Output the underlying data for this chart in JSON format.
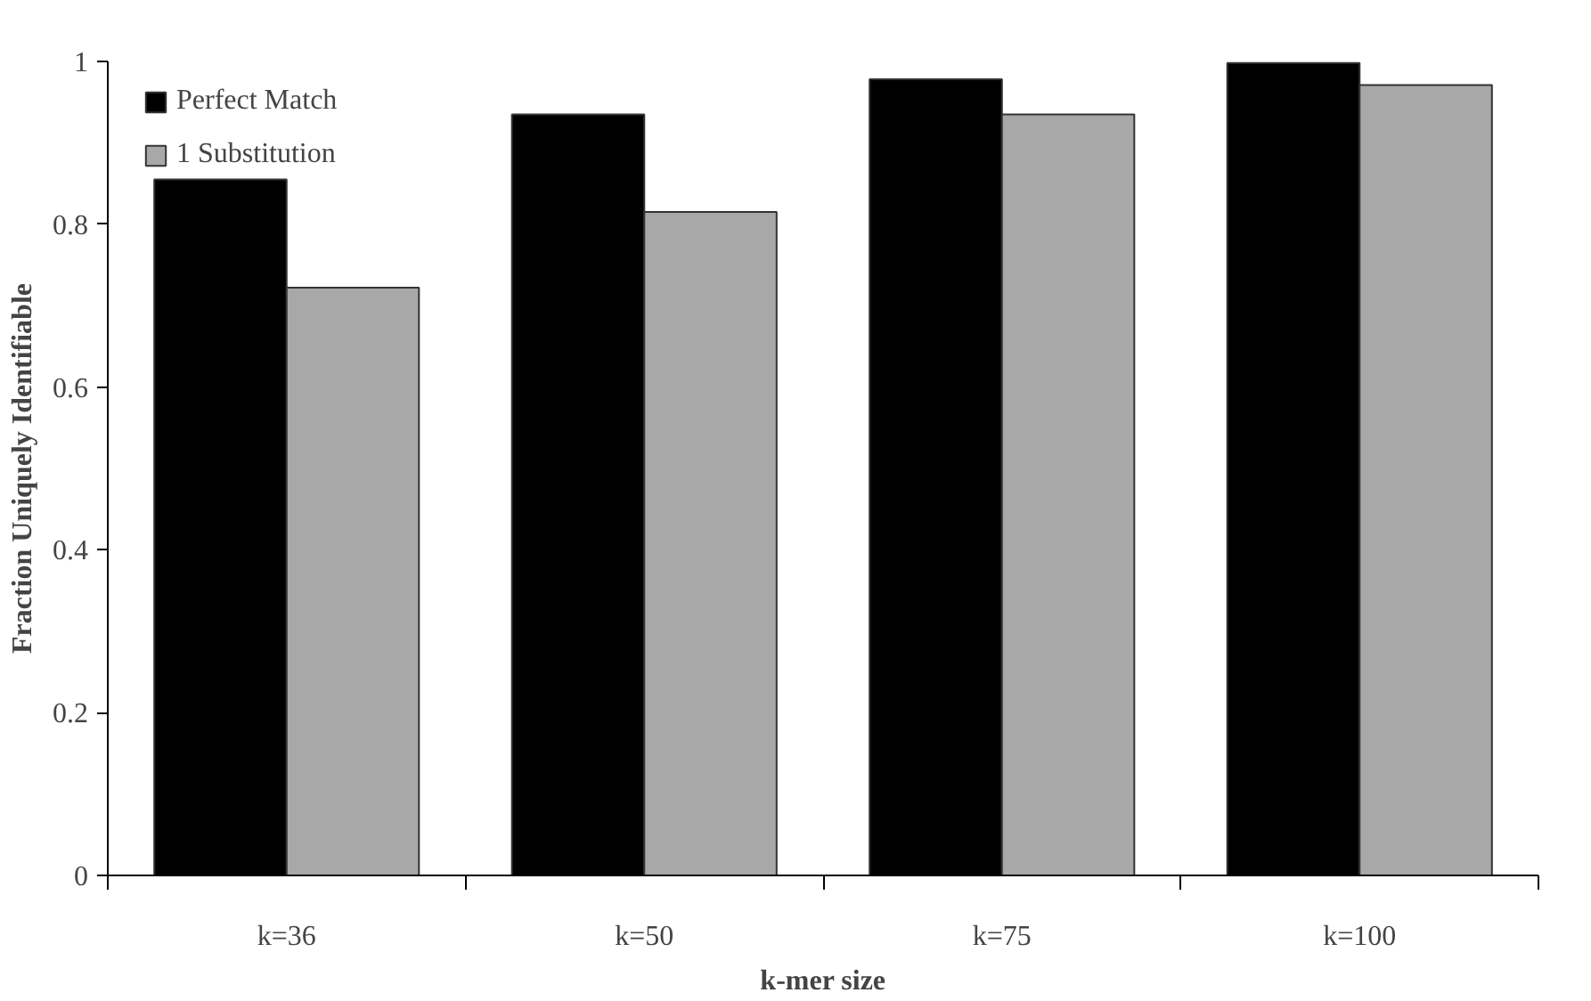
{
  "chart_data": {
    "type": "bar",
    "xlabel": "k-mer size",
    "ylabel": "Fraction Uniquely Identifiable",
    "categories": [
      "k=36",
      "k=50",
      "k=75",
      "k=100"
    ],
    "series": [
      {
        "name": "Perfect Match",
        "color": "#000000",
        "values": [
          0.855,
          0.935,
          0.978,
          0.998
        ]
      },
      {
        "name": "1 Substitution",
        "color": "#a8a8a8",
        "values": [
          0.722,
          0.815,
          0.935,
          0.971
        ]
      }
    ],
    "ylim": [
      0,
      1
    ],
    "yticks": [
      0,
      0.2,
      0.4,
      0.6,
      0.8,
      1
    ],
    "grid": false,
    "legend": "top left"
  }
}
